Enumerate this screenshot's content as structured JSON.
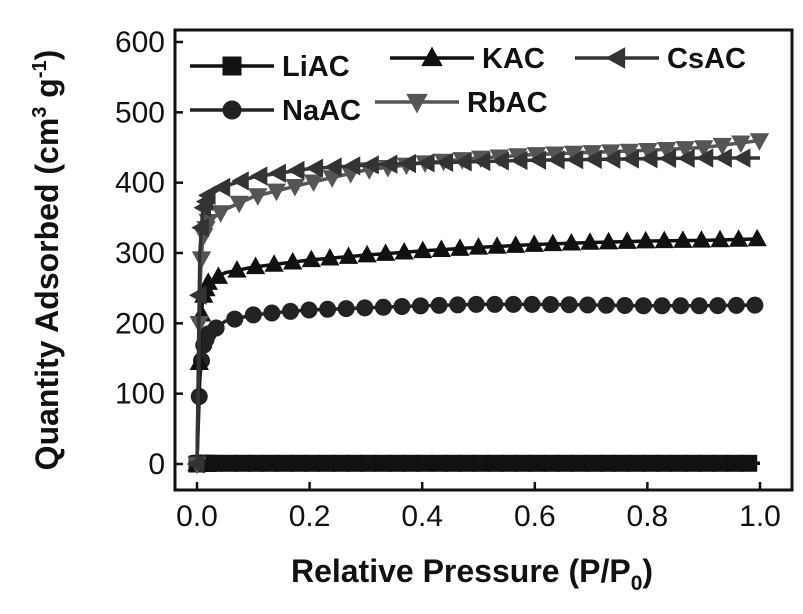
{
  "chart_data": {
    "type": "line",
    "xlabel": "Relative Pressure (P/P",
    "xlabel_sub": "0",
    "xlabel_close": ")",
    "ylabel": "Quantity Adsorbed (cm",
    "ylabel_sup1": "3",
    "ylabel_mid": " g",
    "ylabel_sup2": "-1",
    "ylabel_close": ")",
    "xlim": [
      0.0,
      1.0
    ],
    "ylim": [
      0,
      600
    ],
    "x_ticks": [
      "0.0",
      "0.2",
      "0.4",
      "0.6",
      "0.8",
      "1.0"
    ],
    "y_ticks": [
      "0",
      "100",
      "200",
      "300",
      "400",
      "500",
      "600"
    ],
    "legend_position": "top",
    "grid": false,
    "series": [
      {
        "name": "LiAC",
        "marker": "square",
        "color": "#111111",
        "x": [
          0.0,
          0.005,
          0.01,
          0.02,
          0.05,
          0.1,
          0.2,
          0.3,
          0.4,
          0.5,
          0.6,
          0.7,
          0.8,
          0.9,
          1.0
        ],
        "y": [
          0,
          1,
          1,
          1,
          1,
          1,
          1,
          1,
          1,
          1,
          1,
          1,
          1,
          1,
          1
        ]
      },
      {
        "name": "NaAC",
        "marker": "circle",
        "color": "#222222",
        "x": [
          0.0,
          0.005,
          0.01,
          0.02,
          0.05,
          0.1,
          0.15,
          0.2,
          0.3,
          0.4,
          0.5,
          0.6,
          0.7,
          0.8,
          0.9,
          1.0
        ],
        "y": [
          0,
          120,
          165,
          185,
          203,
          212,
          216,
          219,
          222,
          225,
          227,
          227,
          226,
          225,
          225,
          226
        ]
      },
      {
        "name": "KAC",
        "marker": "triangle-up",
        "color": "#111111",
        "x": [
          0.0,
          0.005,
          0.01,
          0.02,
          0.05,
          0.1,
          0.2,
          0.3,
          0.4,
          0.5,
          0.6,
          0.7,
          0.8,
          0.9,
          1.0
        ],
        "y": [
          0,
          180,
          235,
          258,
          272,
          280,
          290,
          297,
          303,
          308,
          312,
          315,
          317,
          318,
          320
        ]
      },
      {
        "name": "RbAC",
        "marker": "triangle-down",
        "color": "#555555",
        "x": [
          0.0,
          0.005,
          0.01,
          0.02,
          0.05,
          0.1,
          0.2,
          0.3,
          0.4,
          0.5,
          0.6,
          0.7,
          0.8,
          0.9,
          1.0
        ],
        "y": [
          0,
          250,
          320,
          345,
          362,
          380,
          400,
          418,
          428,
          435,
          440,
          443,
          446,
          450,
          460
        ]
      },
      {
        "name": "CsAC",
        "marker": "triangle-left",
        "color": "#333333",
        "x": [
          0.0,
          0.005,
          0.01,
          0.02,
          0.05,
          0.1,
          0.2,
          0.3,
          0.4,
          0.5,
          0.6,
          0.7,
          0.8,
          0.9,
          1.0
        ],
        "y": [
          0,
          300,
          360,
          382,
          395,
          408,
          420,
          425,
          428,
          430,
          432,
          433,
          434,
          435,
          435
        ]
      }
    ]
  }
}
